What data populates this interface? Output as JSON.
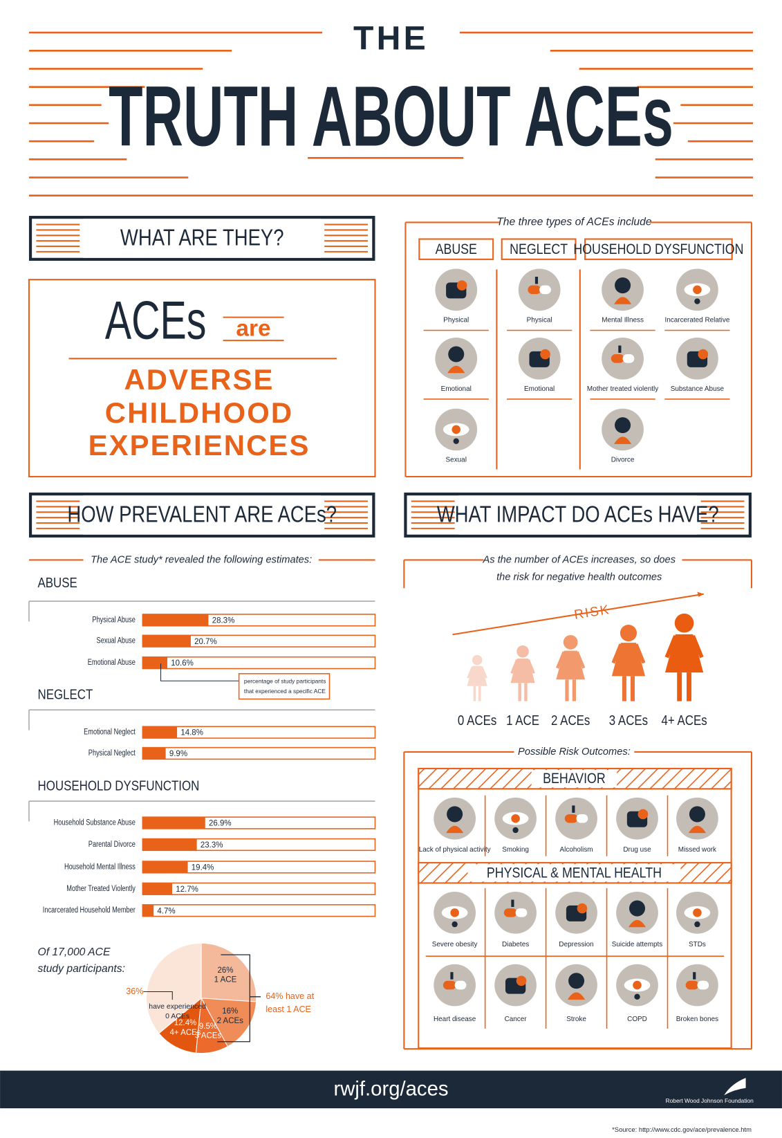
{
  "header": {
    "title_top": "THE",
    "title_main": "TRUTH ABOUT ACEs"
  },
  "what": {
    "heading": "WHAT ARE THEY?",
    "aces": "ACEs",
    "are": "are",
    "lines": [
      "ADVERSE",
      "CHILDHOOD",
      "EXPERIENCES"
    ]
  },
  "types": {
    "intro": "The three types of ACEs include",
    "groups": [
      {
        "name": "ABUSE",
        "items": [
          "Physical",
          "Emotional",
          "Sexual"
        ]
      },
      {
        "name": "NEGLECT",
        "items": [
          "Physical",
          "Emotional"
        ]
      },
      {
        "name": "HOUSEHOLD DYSFUNCTION",
        "items": [
          "Mental Illness",
          "Incarcerated Relative",
          "Mother treated violently",
          "Substance Abuse",
          "Divorce"
        ]
      }
    ]
  },
  "prevalence": {
    "heading": "HOW PREVALENT ARE ACEs?",
    "intro": "The ACE study* revealed the following estimates:",
    "note": [
      "percentage of study participants",
      "that experienced a specific ACE"
    ],
    "xlim": [
      0,
      100
    ],
    "groups": [
      {
        "name": "ABUSE",
        "categories": [
          "Physical Abuse",
          "Sexual Abuse",
          "Emotional Abuse"
        ],
        "values": [
          28.3,
          20.7,
          10.6
        ],
        "value_labels": [
          "28.3%",
          "20.7%",
          "10.6%"
        ]
      },
      {
        "name": "NEGLECT",
        "categories": [
          "Emotional Neglect",
          "Physical Neglect"
        ],
        "values": [
          14.8,
          9.9
        ],
        "value_labels": [
          "14.8%",
          "9.9%"
        ]
      },
      {
        "name": "HOUSEHOLD DYSFUNCTION",
        "categories": [
          "Household Substance Abuse",
          "Parental Divorce",
          "Household Mental Illness",
          "Mother Treated Violently",
          "Incarcerated Household Member"
        ],
        "values": [
          26.9,
          23.3,
          19.4,
          12.7,
          4.7
        ],
        "value_labels": [
          "26.9%",
          "23.3%",
          "19.4%",
          "12.7%",
          "4.7%"
        ]
      }
    ]
  },
  "pie": {
    "type": "pie",
    "intro": [
      "Of 17,000 ACE",
      "study participants:"
    ],
    "categories": [
      "0 ACEs",
      "1 ACE",
      "2 ACEs",
      "3 ACEs",
      "4+ ACEs"
    ],
    "values": [
      36,
      26,
      16,
      9.5,
      12.4
    ],
    "value_labels": [
      "36%",
      "26%",
      "16%",
      "9.5%",
      "12.4%"
    ],
    "colors": [
      "#fbe4d8",
      "#f4b99b",
      "#f08c58",
      "#ec6a2b",
      "#e3560f"
    ],
    "zero_note": "have experienced",
    "bracket_label": [
      "64% have at",
      "least 1 ACE"
    ]
  },
  "impact": {
    "heading": "WHAT IMPACT DO ACEs HAVE?",
    "intro": [
      "As the number of ACEs increases, so does",
      "the risk for negative health outcomes"
    ],
    "risk": "RISK",
    "figures": [
      "0 ACEs",
      "1 ACE",
      "2 ACEs",
      "3 ACEs",
      "4+ ACEs"
    ]
  },
  "outcomes": {
    "intro": "Possible Risk Outcomes:",
    "behavior": {
      "heading": "BEHAVIOR",
      "items": [
        "Lack of physical activity",
        "Smoking",
        "Alcoholism",
        "Drug use",
        "Missed work"
      ]
    },
    "health": {
      "heading": "PHYSICAL & MENTAL HEALTH",
      "items": [
        "Severe obesity",
        "Diabetes",
        "Depression",
        "Suicide attempts",
        "STDs",
        "Heart disease",
        "Cancer",
        "Stroke",
        "COPD",
        "Broken bones"
      ]
    }
  },
  "footer": {
    "url": "rwjf.org/aces",
    "org": "Robert Wood Johnson Foundation",
    "source": "*Source: http://www.cdc.gov/ace/prevalence.htm"
  }
}
